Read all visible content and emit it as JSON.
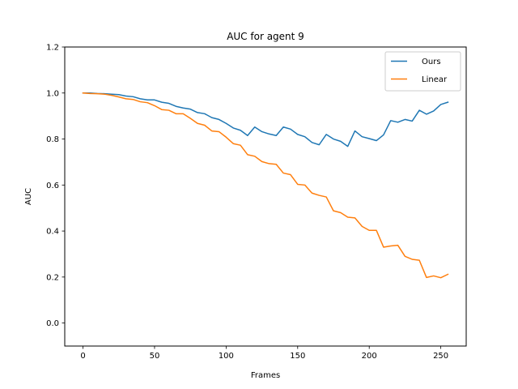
{
  "chart_data": {
    "type": "line",
    "title": "AUC for agent 9",
    "xlabel": "Frames",
    "ylabel": "AUC",
    "xlim": [
      -12.75,
      267.75
    ],
    "ylim": [
      -0.1,
      1.2
    ],
    "xticks": [
      0,
      50,
      100,
      150,
      200,
      250
    ],
    "yticks": [
      0.0,
      0.2,
      0.4,
      0.6,
      0.8,
      1.0,
      1.2
    ],
    "xtick_labels": [
      "0",
      "50",
      "100",
      "150",
      "200",
      "250"
    ],
    "ytick_labels": [
      "0.0",
      "0.2",
      "0.4",
      "0.6",
      "0.8",
      "1.0",
      "1.2"
    ],
    "grid": false,
    "legend_position": "top-right",
    "x": [
      0,
      5,
      10,
      15,
      20,
      25,
      30,
      35,
      40,
      45,
      50,
      55,
      60,
      65,
      70,
      75,
      80,
      85,
      90,
      95,
      100,
      105,
      110,
      115,
      120,
      125,
      130,
      135,
      140,
      145,
      150,
      155,
      160,
      165,
      170,
      175,
      180,
      185,
      190,
      195,
      200,
      205,
      210,
      215,
      220,
      225,
      230,
      235,
      240,
      245,
      250,
      255
    ],
    "series": [
      {
        "name": "Ours",
        "color": "#1f77b4",
        "values": [
          1.0,
          1.0,
          0.998,
          0.997,
          0.995,
          0.993,
          0.987,
          0.984,
          0.975,
          0.97,
          0.97,
          0.96,
          0.955,
          0.942,
          0.935,
          0.93,
          0.915,
          0.91,
          0.893,
          0.885,
          0.868,
          0.848,
          0.838,
          0.815,
          0.852,
          0.832,
          0.822,
          0.815,
          0.852,
          0.843,
          0.82,
          0.81,
          0.785,
          0.775,
          0.82,
          0.8,
          0.79,
          0.768,
          0.835,
          0.81,
          0.802,
          0.793,
          0.818,
          0.88,
          0.873,
          0.885,
          0.878,
          0.925,
          0.908,
          0.922,
          0.95,
          0.96
        ]
      },
      {
        "name": "Linear",
        "color": "#ff7f0e",
        "values": [
          1.0,
          0.998,
          0.997,
          0.995,
          0.99,
          0.983,
          0.975,
          0.972,
          0.962,
          0.958,
          0.945,
          0.928,
          0.925,
          0.91,
          0.91,
          0.89,
          0.868,
          0.86,
          0.835,
          0.832,
          0.808,
          0.78,
          0.773,
          0.732,
          0.725,
          0.702,
          0.693,
          0.69,
          0.652,
          0.645,
          0.603,
          0.6,
          0.565,
          0.555,
          0.548,
          0.488,
          0.48,
          0.46,
          0.457,
          0.42,
          0.403,
          0.403,
          0.33,
          0.335,
          0.338,
          0.29,
          0.277,
          0.273,
          0.198,
          0.205,
          0.197,
          0.212
        ]
      }
    ]
  }
}
